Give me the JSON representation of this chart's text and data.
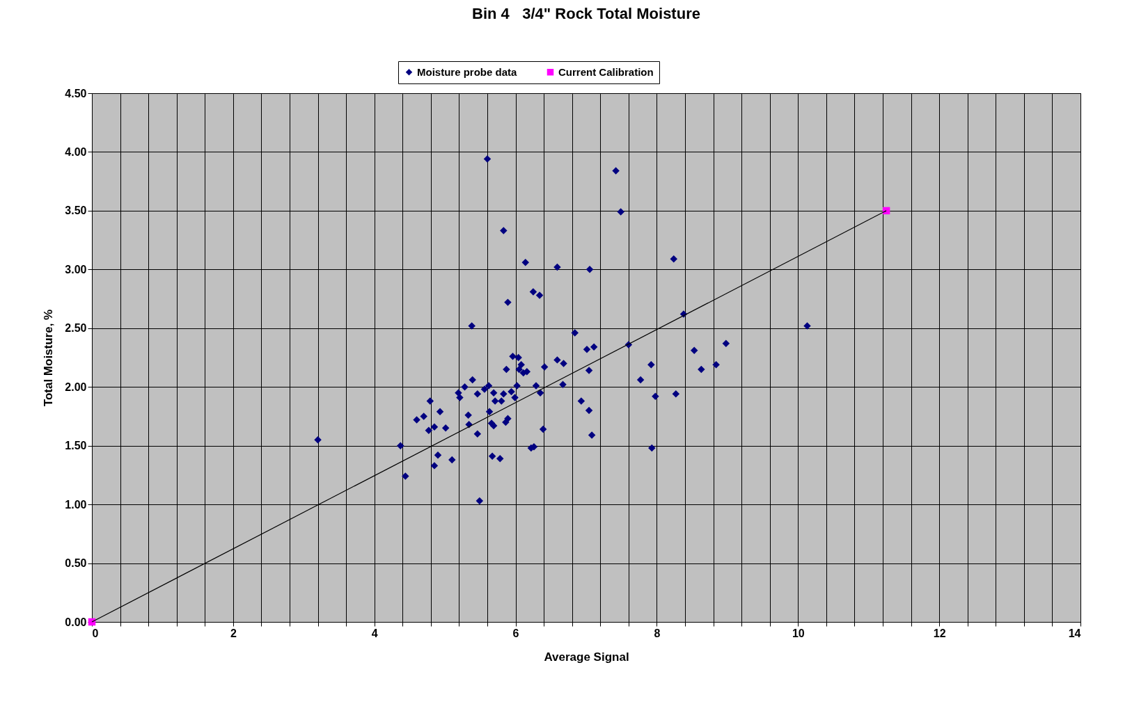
{
  "chart_data": {
    "type": "scatter",
    "title": "Bin 4   3/4\" Rock Total Moisture",
    "xlabel": "Average Signal",
    "ylabel": "Total Moisture, %",
    "xlim": [
      0,
      14
    ],
    "ylim": [
      0,
      4.5
    ],
    "xticks": [
      0,
      {
        "value": 0.4,
        "label": null
      },
      {
        "value": 0.8,
        "label": null
      },
      {
        "value": 1.2,
        "label": null
      },
      {
        "value": 1.6,
        "label": null
      },
      2,
      {
        "value": 2.4,
        "label": null
      },
      {
        "value": 2.8,
        "label": null
      },
      {
        "value": 3.2,
        "label": null
      },
      {
        "value": 3.6,
        "label": null
      },
      4,
      {
        "value": 4.4,
        "label": null
      },
      {
        "value": 4.8,
        "label": null
      },
      {
        "value": 5.2,
        "label": null
      },
      {
        "value": 5.6,
        "label": null
      },
      6,
      {
        "value": 6.4,
        "label": null
      },
      {
        "value": 6.8,
        "label": null
      },
      {
        "value": 7.2,
        "label": null
      },
      {
        "value": 7.6,
        "label": null
      },
      8,
      {
        "value": 8.4,
        "label": null
      },
      {
        "value": 8.8,
        "label": null
      },
      {
        "value": 9.2,
        "label": null
      },
      {
        "value": 9.6,
        "label": null
      },
      10,
      {
        "value": 10.4,
        "label": null
      },
      {
        "value": 10.8,
        "label": null
      },
      {
        "value": 11.2,
        "label": null
      },
      {
        "value": 11.6,
        "label": null
      },
      12,
      {
        "value": 12.4,
        "label": null
      },
      {
        "value": 12.8,
        "label": null
      },
      {
        "value": 13.2,
        "label": null
      },
      {
        "value": 13.6,
        "label": null
      },
      14
    ],
    "yticks": [
      {
        "value": 0,
        "label": "0.00"
      },
      {
        "value": 0.5,
        "label": "0.50"
      },
      {
        "value": 1,
        "label": "1.00"
      },
      {
        "value": 1.5,
        "label": "1.50"
      },
      {
        "value": 2,
        "label": "2.00"
      },
      {
        "value": 2.5,
        "label": "2.50"
      },
      {
        "value": 3,
        "label": "3.00"
      },
      {
        "value": 3.5,
        "label": "3.50"
      },
      {
        "value": 4,
        "label": "4.00"
      },
      {
        "value": 4.5,
        "label": "4.50"
      }
    ],
    "grid": true,
    "legend": "top",
    "series": [
      {
        "name": "Moisture probe data",
        "type": "scatter",
        "marker": "diamond",
        "color": "#000080",
        "x": [
          3.2,
          4.37,
          4.44,
          4.6,
          4.7,
          4.79,
          4.77,
          4.85,
          4.93,
          4.85,
          4.9,
          5.01,
          5.1,
          5.19,
          5.21,
          5.28,
          5.33,
          5.34,
          5.39,
          5.38,
          5.46,
          5.46,
          5.49,
          5.56,
          5.6,
          5.62,
          5.63,
          5.66,
          5.67,
          5.69,
          5.71,
          5.69,
          5.78,
          5.8,
          5.83,
          5.83,
          5.86,
          5.89,
          5.87,
          5.89,
          5.94,
          5.96,
          5.99,
          6.02,
          6.04,
          6.05,
          6.08,
          6.11,
          6.16,
          6.14,
          6.22,
          6.26,
          6.25,
          6.34,
          6.29,
          6.35,
          6.39,
          6.41,
          6.59,
          6.59,
          6.68,
          6.67,
          6.84,
          6.93,
          7.01,
          7.04,
          7.05,
          7.04,
          7.08,
          7.11,
          7.42,
          7.49,
          7.6,
          7.77,
          7.92,
          7.93,
          7.98,
          8.24,
          8.27,
          8.38,
          8.53,
          8.63,
          8.84,
          8.98,
          10.13
        ],
        "values": [
          1.55,
          1.5,
          1.24,
          1.72,
          1.75,
          1.88,
          1.63,
          1.66,
          1.79,
          1.33,
          1.42,
          1.65,
          1.38,
          1.95,
          1.91,
          2.0,
          1.76,
          1.68,
          2.06,
          2.52,
          1.6,
          1.94,
          1.03,
          1.98,
          3.94,
          2.01,
          1.79,
          1.69,
          1.41,
          1.95,
          1.88,
          1.67,
          1.39,
          1.88,
          3.33,
          1.94,
          1.7,
          1.73,
          2.15,
          2.72,
          1.96,
          2.26,
          1.91,
          2.01,
          2.25,
          2.15,
          2.19,
          2.12,
          2.13,
          3.06,
          1.48,
          1.49,
          2.81,
          2.78,
          2.01,
          1.95,
          1.64,
          2.17,
          3.02,
          2.23,
          2.2,
          2.02,
          2.46,
          1.88,
          2.32,
          2.14,
          3.0,
          1.8,
          1.59,
          2.34,
          3.84,
          3.49,
          2.36,
          2.06,
          2.19,
          1.48,
          1.92,
          3.09,
          1.94,
          2.62,
          2.31,
          2.15,
          2.19,
          2.37,
          2.52
        ]
      },
      {
        "name": "Current Calibration",
        "type": "line",
        "marker": "square",
        "color": "#ff00ff",
        "x": [
          0,
          11.25
        ],
        "values": [
          0,
          3.5
        ]
      }
    ]
  }
}
